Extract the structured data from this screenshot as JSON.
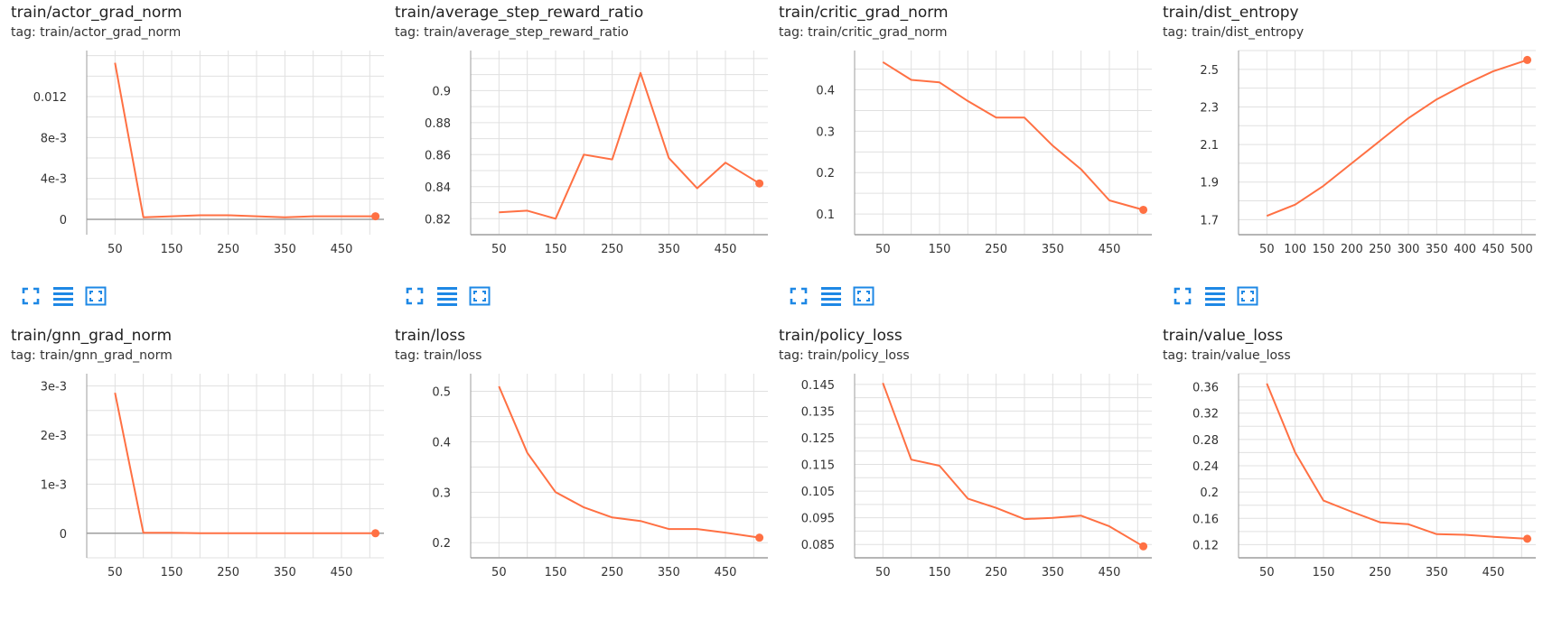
{
  "colors": {
    "line": "#ff7043",
    "grid": "#e0e0e0",
    "axis": "#9e9e9e",
    "icon": "#1e88e5"
  },
  "icons": [
    "fullscreen-icon",
    "toggle-y-log-icon",
    "fit-domain-icon"
  ],
  "cards": [
    {
      "title": "train/actor_grad_norm",
      "tag": "tag: train/actor_grad_norm"
    },
    {
      "title": "train/average_step_reward_ratio",
      "tag": "tag: train/average_step_reward_ratio"
    },
    {
      "title": "train/critic_grad_norm",
      "tag": "tag: train/critic_grad_norm"
    },
    {
      "title": "train/dist_entropy",
      "tag": "tag: train/dist_entropy"
    },
    {
      "title": "train/gnn_grad_norm",
      "tag": "tag: train/gnn_grad_norm"
    },
    {
      "title": "train/loss",
      "tag": "tag: train/loss"
    },
    {
      "title": "train/policy_loss",
      "tag": "tag: train/policy_loss"
    },
    {
      "title": "train/value_loss",
      "tag": "tag: train/value_loss"
    }
  ],
  "chart_data": [
    {
      "type": "line",
      "title": "train/actor_grad_norm",
      "x": [
        50,
        100,
        150,
        200,
        250,
        300,
        350,
        400,
        450,
        510
      ],
      "y": [
        0.0153,
        0.0002,
        0.0003,
        0.0004,
        0.0004,
        0.0003,
        0.0002,
        0.0003,
        0.0003,
        0.0003
      ],
      "xlim": [
        0,
        525
      ],
      "ylim": [
        -0.0015,
        0.0165
      ],
      "xticks": [
        50,
        150,
        250,
        350,
        450
      ],
      "xtick_labels": [
        "50",
        "150",
        "250",
        "350",
        "450"
      ],
      "yticks": [
        0,
        0.004,
        0.008,
        0.012
      ],
      "ytick_labels": [
        "0",
        "4e-3",
        "8e-3",
        "0.012"
      ]
    },
    {
      "type": "line",
      "title": "train/average_step_reward_ratio",
      "x": [
        50,
        100,
        150,
        200,
        250,
        300,
        350,
        400,
        450,
        510
      ],
      "y": [
        0.824,
        0.825,
        0.82,
        0.86,
        0.857,
        0.911,
        0.858,
        0.839,
        0.855,
        0.842
      ],
      "xlim": [
        0,
        525
      ],
      "ylim": [
        0.81,
        0.925
      ],
      "xticks": [
        50,
        150,
        250,
        350,
        450
      ],
      "xtick_labels": [
        "50",
        "150",
        "250",
        "350",
        "450"
      ],
      "yticks": [
        0.82,
        0.84,
        0.86,
        0.88,
        0.9
      ],
      "ytick_labels": [
        "0.82",
        "0.84",
        "0.86",
        "0.88",
        "0.9"
      ]
    },
    {
      "type": "line",
      "title": "train/critic_grad_norm",
      "x": [
        50,
        100,
        150,
        200,
        250,
        300,
        350,
        400,
        450,
        510
      ],
      "y": [
        0.467,
        0.424,
        0.418,
        0.373,
        0.333,
        0.333,
        0.265,
        0.208,
        0.133,
        0.11
      ],
      "xlim": [
        0,
        525
      ],
      "ylim": [
        0.05,
        0.495
      ],
      "xticks": [
        50,
        150,
        250,
        350,
        450
      ],
      "xtick_labels": [
        "50",
        "150",
        "250",
        "350",
        "450"
      ],
      "yticks": [
        0.1,
        0.2,
        0.3,
        0.4
      ],
      "ytick_labels": [
        "0.1",
        "0.2",
        "0.3",
        "0.4"
      ]
    },
    {
      "type": "line",
      "title": "train/dist_entropy",
      "x": [
        50,
        100,
        150,
        200,
        250,
        300,
        350,
        400,
        450,
        510
      ],
      "y": [
        1.72,
        1.78,
        1.88,
        2.0,
        2.12,
        2.24,
        2.34,
        2.42,
        2.49,
        2.55
      ],
      "xlim": [
        0,
        525
      ],
      "ylim": [
        1.62,
        2.6
      ],
      "xticks": [
        50,
        100,
        150,
        200,
        250,
        300,
        350,
        400,
        450,
        500
      ],
      "xtick_labels": [
        "50",
        "100",
        "150",
        "200",
        "250",
        "300",
        "350",
        "400",
        "450",
        "500"
      ],
      "yticks": [
        1.7,
        1.9,
        2.1,
        2.3,
        2.5
      ],
      "ytick_labels": [
        "1.7",
        "1.9",
        "2.1",
        "2.3",
        "2.5"
      ]
    },
    {
      "type": "line",
      "title": "train/gnn_grad_norm",
      "x": [
        50,
        100,
        150,
        200,
        250,
        300,
        350,
        400,
        450,
        510
      ],
      "y": [
        0.00286,
        1e-05,
        1e-05,
        0.0,
        0.0,
        0.0,
        0.0,
        0.0,
        0.0,
        0.0
      ],
      "xlim": [
        0,
        525
      ],
      "ylim": [
        -0.0005,
        0.00325
      ],
      "xticks": [
        50,
        150,
        250,
        350,
        450
      ],
      "xtick_labels": [
        "50",
        "150",
        "250",
        "350",
        "450"
      ],
      "yticks": [
        0,
        0.001,
        0.002,
        0.003
      ],
      "ytick_labels": [
        "0",
        "1e-3",
        "2e-3",
        "3e-3"
      ]
    },
    {
      "type": "line",
      "title": "train/loss",
      "x": [
        50,
        100,
        150,
        200,
        250,
        300,
        350,
        400,
        450,
        510
      ],
      "y": [
        0.51,
        0.378,
        0.3,
        0.27,
        0.25,
        0.243,
        0.227,
        0.227,
        0.22,
        0.21
      ],
      "xlim": [
        0,
        525
      ],
      "ylim": [
        0.17,
        0.535
      ],
      "xticks": [
        50,
        150,
        250,
        350,
        450
      ],
      "xtick_labels": [
        "50",
        "150",
        "250",
        "350",
        "450"
      ],
      "yticks": [
        0.2,
        0.3,
        0.4,
        0.5
      ],
      "ytick_labels": [
        "0.2",
        "0.3",
        "0.4",
        "0.5"
      ]
    },
    {
      "type": "line",
      "title": "train/policy_loss",
      "x": [
        50,
        100,
        150,
        200,
        250,
        300,
        350,
        400,
        450,
        510
      ],
      "y": [
        0.1455,
        0.1168,
        0.1145,
        0.1022,
        0.0987,
        0.0945,
        0.095,
        0.0958,
        0.0918,
        0.0843
      ],
      "xlim": [
        0,
        525
      ],
      "ylim": [
        0.08,
        0.149
      ],
      "xticks": [
        50,
        150,
        250,
        350,
        450
      ],
      "xtick_labels": [
        "50",
        "150",
        "250",
        "350",
        "450"
      ],
      "yticks": [
        0.085,
        0.095,
        0.105,
        0.115,
        0.125,
        0.135,
        0.145
      ],
      "ytick_labels": [
        "0.085",
        "0.095",
        "0.105",
        "0.115",
        "0.125",
        "0.135",
        "0.145"
      ]
    },
    {
      "type": "line",
      "title": "train/value_loss",
      "x": [
        50,
        100,
        150,
        200,
        250,
        300,
        350,
        400,
        450,
        510
      ],
      "y": [
        0.365,
        0.26,
        0.187,
        0.17,
        0.154,
        0.151,
        0.136,
        0.135,
        0.132,
        0.129
      ],
      "xlim": [
        0,
        525
      ],
      "ylim": [
        0.1,
        0.38
      ],
      "xticks": [
        50,
        150,
        250,
        350,
        450
      ],
      "xtick_labels": [
        "50",
        "150",
        "250",
        "350",
        "450"
      ],
      "yticks": [
        0.12,
        0.16,
        0.2,
        0.24,
        0.28,
        0.32,
        0.36
      ],
      "ytick_labels": [
        "0.12",
        "0.16",
        "0.2",
        "0.24",
        "0.28",
        "0.32",
        "0.36"
      ]
    }
  ]
}
